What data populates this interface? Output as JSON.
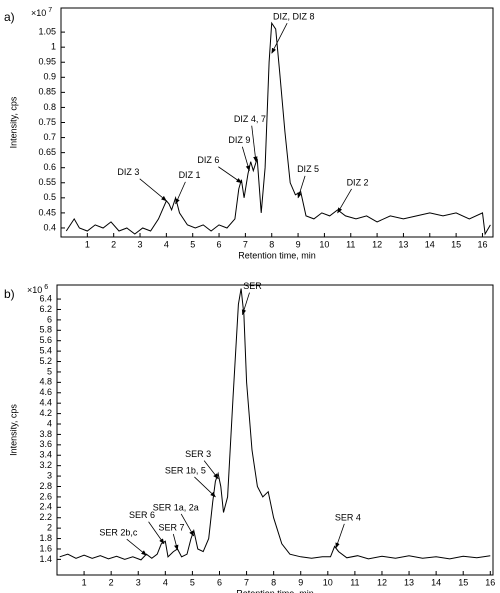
{
  "chart_data": [
    {
      "type": "line",
      "panel_label": "a)",
      "y_label": "Intensity, cps",
      "x_label": "Retention time, min",
      "y_multiplier": {
        "base": "×10",
        "exponent": "7"
      },
      "xlim": [
        0,
        16.4
      ],
      "ylim": [
        0.37,
        1.13
      ],
      "xticks": [
        1,
        2,
        3,
        4,
        5,
        6,
        7,
        8,
        9,
        10,
        11,
        12,
        13,
        14,
        15,
        16
      ],
      "yticks": [
        0.4,
        0.45,
        0.5,
        0.55,
        0.6,
        0.65,
        0.7,
        0.75,
        0.8,
        0.85,
        0.9,
        0.95,
        1,
        1.05
      ],
      "x": [
        0.2,
        0.5,
        0.7,
        1.0,
        1.3,
        1.6,
        1.9,
        2.2,
        2.5,
        2.8,
        3.1,
        3.4,
        3.7,
        3.9,
        4.0,
        4.1,
        4.2,
        4.35,
        4.5,
        4.8,
        5.1,
        5.4,
        5.7,
        6.0,
        6.3,
        6.6,
        6.75,
        6.85,
        6.95,
        7.1,
        7.2,
        7.3,
        7.45,
        7.6,
        7.75,
        7.9,
        8.0,
        8.15,
        8.3,
        8.5,
        8.7,
        8.9,
        9.1,
        9.3,
        9.6,
        9.9,
        10.2,
        10.5,
        10.8,
        11.2,
        11.6,
        12.0,
        12.5,
        13.0,
        13.5,
        14.0,
        14.5,
        15.0,
        15.5,
        16.0,
        16.1,
        16.3
      ],
      "color": "#000000",
      "values": [
        0.39,
        0.43,
        0.4,
        0.39,
        0.41,
        0.4,
        0.42,
        0.39,
        0.4,
        0.38,
        0.4,
        0.39,
        0.43,
        0.47,
        0.49,
        0.48,
        0.46,
        0.5,
        0.45,
        0.41,
        0.4,
        0.41,
        0.39,
        0.41,
        0.4,
        0.43,
        0.53,
        0.56,
        0.5,
        0.58,
        0.62,
        0.59,
        0.63,
        0.45,
        0.6,
        0.95,
        1.08,
        1.06,
        0.92,
        0.72,
        0.55,
        0.51,
        0.52,
        0.44,
        0.43,
        0.45,
        0.44,
        0.46,
        0.44,
        0.43,
        0.44,
        0.42,
        0.44,
        0.43,
        0.44,
        0.45,
        0.44,
        0.45,
        0.43,
        0.45,
        0.38,
        0.41
      ],
      "annotations": [
        {
          "text": "DIZ 3",
          "x": 4.0,
          "y": 0.49
        },
        {
          "text": "DIZ 1",
          "x": 4.35,
          "y": 0.48
        },
        {
          "text": "DIZ 6",
          "x": 6.85,
          "y": 0.55
        },
        {
          "text": "DIZ 9",
          "x": 7.15,
          "y": 0.59
        },
        {
          "text": "DIZ 4, 7",
          "x": 7.4,
          "y": 0.62
        },
        {
          "text": "DIZ, DIZ 8",
          "x": 8.0,
          "y": 0.98
        },
        {
          "text": "DIZ 5",
          "x": 9.0,
          "y": 0.5
        },
        {
          "text": "DIZ 2",
          "x": 10.5,
          "y": 0.45
        }
      ]
    },
    {
      "type": "line",
      "panel_label": "b)",
      "y_label": "Intensity, cps",
      "x_label": "Retention time, min",
      "y_multiplier": {
        "base": "×10",
        "exponent": "6"
      },
      "xlim": [
        0,
        16.1
      ],
      "ylim": [
        1.1,
        6.67
      ],
      "xticks": [
        1,
        2,
        3,
        4,
        5,
        6,
        7,
        8,
        9,
        10,
        11,
        12,
        13,
        14,
        15,
        16
      ],
      "yticks": [
        1.4,
        1.6,
        1.8,
        2,
        2.2,
        2.4,
        2.6,
        2.8,
        3,
        3.2,
        3.4,
        3.6,
        3.8,
        4,
        4.2,
        4.4,
        4.6,
        4.8,
        5,
        5.2,
        5.4,
        5.6,
        5.8,
        6,
        6.2,
        6.4
      ],
      "x": [
        0.1,
        0.4,
        0.7,
        1.0,
        1.3,
        1.6,
        1.9,
        2.2,
        2.5,
        2.8,
        3.1,
        3.3,
        3.5,
        3.7,
        3.85,
        4.0,
        4.1,
        4.3,
        4.45,
        4.6,
        4.8,
        4.95,
        5.05,
        5.2,
        5.4,
        5.6,
        5.75,
        5.85,
        5.95,
        6.05,
        6.15,
        6.3,
        6.5,
        6.7,
        6.8,
        6.9,
        7.0,
        7.2,
        7.4,
        7.6,
        7.8,
        8.0,
        8.3,
        8.6,
        9.0,
        9.4,
        9.8,
        10.1,
        10.25,
        10.4,
        10.7,
        11.1,
        11.5,
        12.0,
        12.5,
        13.0,
        13.5,
        14.0,
        14.5,
        15.0,
        15.5,
        16.0
      ],
      "color": "#000000",
      "values": [
        1.45,
        1.5,
        1.42,
        1.48,
        1.42,
        1.47,
        1.41,
        1.46,
        1.4,
        1.45,
        1.39,
        1.5,
        1.42,
        1.5,
        1.7,
        1.75,
        1.45,
        1.55,
        1.6,
        1.45,
        1.5,
        1.8,
        1.95,
        1.6,
        1.55,
        1.8,
        2.5,
        2.9,
        3.05,
        2.8,
        2.3,
        2.6,
        4.5,
        6.3,
        6.6,
        6.1,
        4.8,
        3.5,
        2.8,
        2.6,
        2.7,
        2.2,
        1.7,
        1.5,
        1.45,
        1.42,
        1.45,
        1.45,
        1.65,
        1.55,
        1.43,
        1.47,
        1.41,
        1.46,
        1.42,
        1.47,
        1.42,
        1.45,
        1.41,
        1.46,
        1.43,
        1.47
      ],
      "annotations": [
        {
          "text": "SER",
          "x": 6.85,
          "y": 6.1
        },
        {
          "text": "SER 3",
          "x": 5.95,
          "y": 2.95
        },
        {
          "text": "SER 1b, 5",
          "x": 5.85,
          "y": 2.6
        },
        {
          "text": "SER 1a, 2a",
          "x": 5.05,
          "y": 1.85
        },
        {
          "text": "SER 6",
          "x": 3.95,
          "y": 1.7
        },
        {
          "text": "SER 7",
          "x": 4.45,
          "y": 1.58
        },
        {
          "text": "SER 2b,c",
          "x": 3.3,
          "y": 1.48
        },
        {
          "text": "SER 4",
          "x": 10.3,
          "y": 1.62
        }
      ]
    }
  ]
}
